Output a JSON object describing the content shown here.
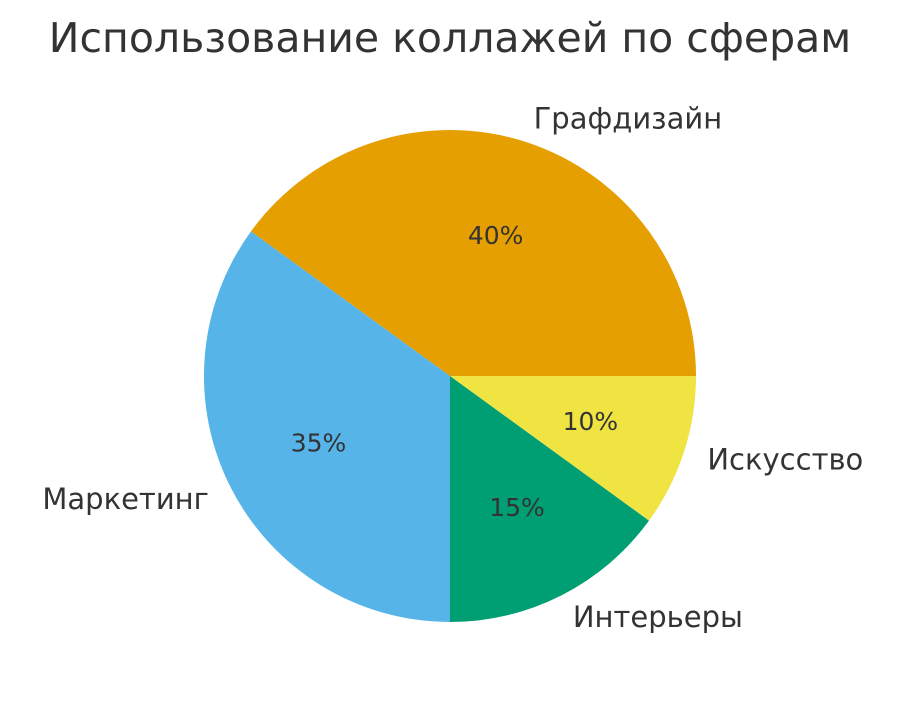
{
  "chart_data": {
    "type": "pie",
    "title": "Использование коллажей по сферам",
    "categories": [
      "Графдизайн",
      "Маркетинг",
      "Интерьеры",
      "Искусство"
    ],
    "values": [
      40,
      35,
      15,
      10
    ],
    "value_labels": [
      "40%",
      "35%",
      "15%",
      "10%"
    ],
    "colors": [
      "#E69F00",
      "#56B4E9",
      "#009E73",
      "#F0E442"
    ],
    "start_angle_deg": 0,
    "direction": "counterclockwise",
    "legend": "none"
  }
}
